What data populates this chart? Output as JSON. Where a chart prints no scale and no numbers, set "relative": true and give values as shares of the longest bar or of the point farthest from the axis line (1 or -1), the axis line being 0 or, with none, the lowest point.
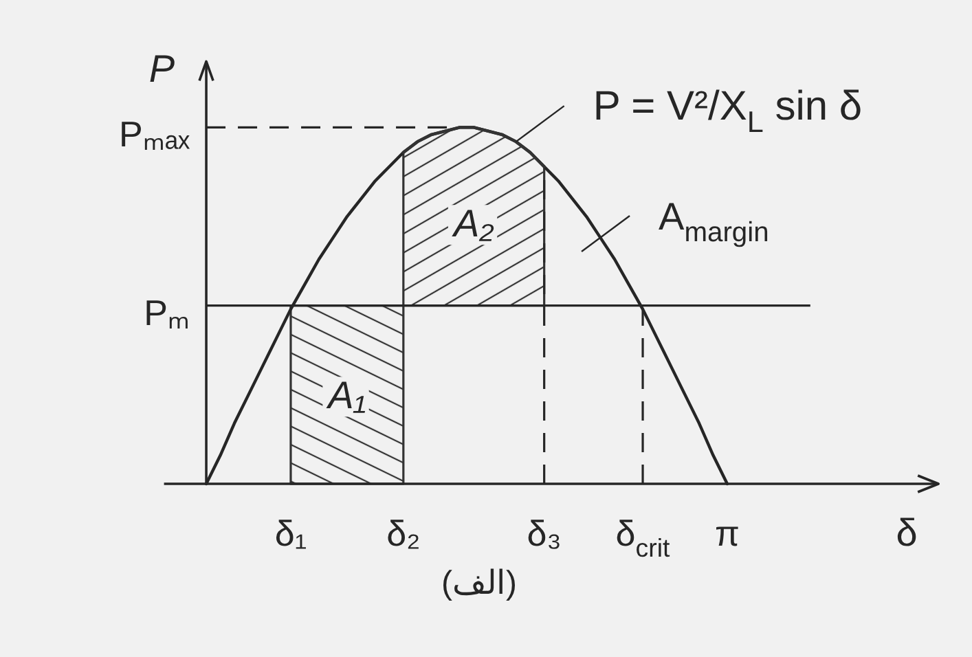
{
  "chart_data": {
    "type": "line",
    "relative": true,
    "categories": [
      null,
      null,
      null,
      null,
      null,
      null,
      null,
      null,
      null,
      "δ₁",
      null,
      null,
      null,
      null,
      null,
      null,
      null,
      "δ₂",
      null,
      null,
      null,
      null,
      null,
      null,
      null,
      null,
      null,
      "δ₃",
      null,
      null,
      null,
      null,
      null,
      null,
      "δ$_{crit}$",
      null,
      null,
      null,
      null,
      null,
      "π",
      null,
      null,
      null,
      null,
      null,
      null,
      null,
      null,
      null,
      null,
      null,
      null,
      null,
      null,
      null
    ],
    "series": [
      {
        "name": "P = V²/X$_{L}$ sin δ",
        "color": "#262626",
        "values": [
          null,
          null,
          null,
          0,
          0.08,
          0.17,
          0.25,
          0.33,
          0.41,
          0.49,
          0.56,
          0.63,
          0.69,
          0.75,
          0.8,
          0.85,
          0.89,
          0.93,
          0.96,
          0.98,
          0.99,
          1,
          1,
          0.99,
          0.98,
          0.96,
          0.93,
          0.89,
          0.85,
          0.8,
          0.75,
          0.69,
          0.63,
          0.56,
          0.49,
          0.41,
          0.33,
          0.25,
          0.17,
          0.08,
          0,
          null,
          null,
          null,
          null,
          null,
          null,
          null,
          null,
          null,
          null,
          null,
          null,
          null,
          null,
          null
        ]
      },
      {
        "type": "area",
        "name": "A₁",
        "color": "#333333",
        "values": [
          null,
          null,
          null,
          null,
          null,
          null,
          null,
          null,
          null,
          0.5,
          0.5,
          0.5,
          0.5,
          0.5,
          0.5,
          0.5,
          0.5,
          0.5,
          null,
          null,
          null,
          null,
          null,
          null,
          null,
          null,
          null,
          null,
          null,
          null,
          null,
          null,
          null,
          null,
          null,
          null,
          null,
          null,
          null,
          null,
          null,
          null,
          null,
          null,
          null,
          null,
          null,
          null,
          null,
          null,
          null,
          null,
          null,
          null,
          null,
          null
        ]
      },
      {
        "type": "line",
        "name": "A₂",
        "color": "#333333",
        "values": [
          null,
          null,
          null,
          null,
          null,
          null,
          null,
          null,
          null,
          null,
          null,
          null,
          null,
          null,
          null,
          null,
          null,
          0.93,
          0.96,
          0.98,
          0.99,
          1,
          1,
          0.99,
          0.98,
          0.96,
          0.93,
          0.89,
          null,
          null,
          null,
          null,
          null,
          null,
          null,
          null,
          null,
          null,
          null,
          null,
          null,
          null,
          null,
          null,
          null,
          null,
          null,
          null,
          null,
          null,
          null,
          null,
          null,
          null,
          null,
          null
        ],
        "upper": [
          null,
          null,
          null,
          null,
          null,
          null,
          null,
          null,
          null,
          null,
          null,
          null,
          null,
          null,
          null,
          null,
          null,
          0.93,
          0.96,
          0.98,
          0.99,
          1,
          1,
          0.99,
          0.98,
          0.96,
          0.93,
          0.89,
          null,
          null,
          null,
          null,
          null,
          null,
          null,
          null,
          null,
          null,
          null,
          null,
          null,
          null,
          null,
          null,
          null,
          null,
          null,
          null,
          null,
          null,
          null,
          null,
          null,
          null,
          null,
          null
        ],
        "lower": [
          null,
          null,
          null,
          null,
          null,
          null,
          null,
          null,
          null,
          null,
          null,
          null,
          null,
          null,
          null,
          null,
          null,
          0.5,
          0.5,
          0.5,
          0.5,
          0.5,
          0.5,
          0.5,
          0.5,
          0.5,
          0.5,
          0.5,
          null,
          null,
          null,
          null,
          null,
          null,
          null,
          null,
          null,
          null,
          null,
          null,
          null,
          null,
          null,
          null,
          null,
          null,
          null,
          null,
          null,
          null,
          null,
          null,
          null,
          null,
          null,
          null
        ]
      }
    ],
    "xlabel": "δ",
    "ylabel": "P",
    "ref_lines": [
      {
        "axis": "y",
        "value": 1,
        "label": "Pₘₐₓ",
        "line_style": "dashed"
      },
      {
        "axis": "y",
        "value": 0.5,
        "label": "Pₘ",
        "line_style": "solid"
      },
      {
        "axis": "x",
        "value": "δ₃",
        "line_style": "dashed"
      },
      {
        "axis": "x",
        "value": "δ$_{crit}$",
        "line_style": "dashed"
      }
    ],
    "annotations": [
      "A$_{margin}$",
      "(الف)"
    ]
  }
}
